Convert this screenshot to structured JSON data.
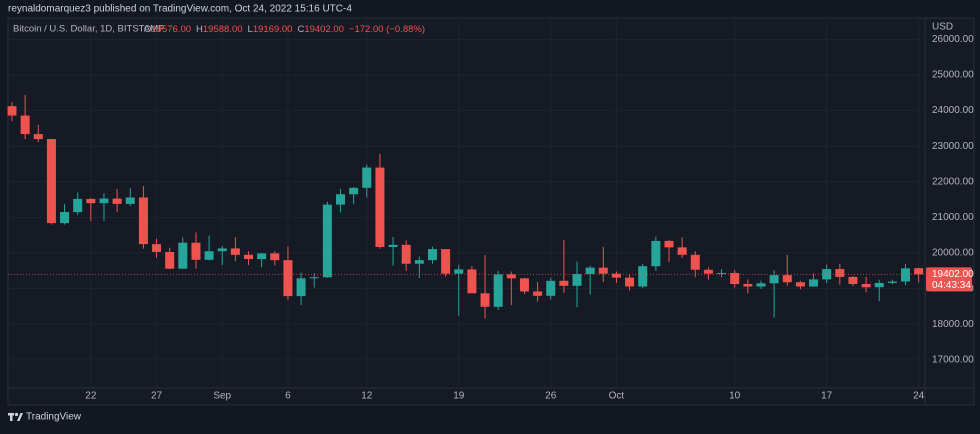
{
  "header": {
    "publisher": "reynaldomarquez3 published on TradingView.com, Oct 24, 2022 15:16 UTC-4"
  },
  "chart_data": {
    "type": "candlestick",
    "title": "Bitcoin / U.S. Dollar, 1D, BITSTAMP",
    "ohlc_legend": [
      {
        "key": "O",
        "value": "19576.00"
      },
      {
        "key": "H",
        "value": "19588.00"
      },
      {
        "key": "L",
        "value": "19169.00"
      },
      {
        "key": "C",
        "value": "19402.00"
      }
    ],
    "change_label": "−172.00 (−0.88%)",
    "currency": "USD",
    "last_price_label": "19402.00",
    "countdown": "04:43:34",
    "up_color": "#26a69a",
    "down_color": "#ef5350",
    "grid": true,
    "categories": [
      null,
      null,
      null,
      null,
      null,
      null,
      "22",
      null,
      null,
      null,
      null,
      "27",
      null,
      null,
      null,
      null,
      "Sep",
      null,
      null,
      null,
      null,
      "6",
      null,
      null,
      null,
      null,
      null,
      "12",
      null,
      null,
      null,
      null,
      null,
      null,
      "19",
      null,
      null,
      null,
      null,
      null,
      null,
      "26",
      null,
      null,
      null,
      null,
      "Oct",
      null,
      null,
      null,
      null,
      null,
      null,
      null,
      null,
      "10",
      null,
      null,
      null,
      null,
      null,
      null,
      "17",
      null,
      null,
      null,
      null,
      null,
      null,
      "24"
    ],
    "open": [
      24124,
      23860,
      23340,
      23200,
      20840,
      21150,
      21520,
      21400,
      21530,
      21380,
      21560,
      20250,
      20030,
      19560,
      20290,
      19810,
      20050,
      20130,
      19950,
      19830,
      19990,
      19800,
      18790,
      19290,
      19320,
      21360,
      21650,
      21830,
      22400,
      20170,
      20230,
      19700,
      19800,
      20110,
      19420,
      19540,
      18870,
      18490,
      19400,
      19290,
      18920,
      18800,
      19220,
      19080,
      19410,
      19590,
      19420,
      19310,
      19060,
      19630,
      20340,
      20160,
      19950,
      19530,
      19420,
      19440,
      19130,
      19060,
      19150,
      19380,
      19180,
      19060,
      19260,
      19550,
      19330,
      19130,
      19040,
      19160,
      19200,
      19576
    ],
    "high": [
      24240,
      24440,
      23600,
      23200,
      21380,
      21700,
      21540,
      21680,
      21800,
      21820,
      21880,
      20400,
      20150,
      20440,
      20580,
      20490,
      20200,
      20440,
      20050,
      20000,
      20050,
      20180,
      19450,
      19440,
      21440,
      21800,
      21850,
      22480,
      22790,
      20450,
      20350,
      19900,
      20180,
      20110,
      19670,
      19640,
      19940,
      19500,
      19480,
      19300,
      19180,
      19310,
      20360,
      19760,
      19640,
      20170,
      19480,
      19400,
      19700,
      20460,
      20370,
      20440,
      20050,
      19600,
      19550,
      19520,
      19260,
      19220,
      19520,
      19950,
      19220,
      19420,
      19670,
      19700,
      19350,
      19330,
      19250,
      19250,
      19690,
      19588
    ],
    "low": [
      23700,
      23200,
      23120,
      20800,
      20800,
      21070,
      20900,
      20900,
      21150,
      21320,
      20120,
      19870,
      19550,
      19550,
      19560,
      19790,
      19660,
      19770,
      19660,
      19600,
      19650,
      18680,
      18540,
      19030,
      19300,
      21140,
      21370,
      21560,
      20120,
      19650,
      19500,
      19300,
      19700,
      19340,
      18240,
      18900,
      18160,
      18400,
      18540,
      18850,
      18640,
      18690,
      18880,
      18480,
      18840,
      19190,
      19160,
      18950,
      19020,
      19500,
      19750,
      19860,
      19320,
      19250,
      19320,
      19030,
      18870,
      18990,
      18190,
      19080,
      18980,
      19050,
      19150,
      19110,
      19070,
      18900,
      18650,
      19120,
      19100,
      19169
    ],
    "close": [
      23860,
      23340,
      23200,
      20840,
      21150,
      21520,
      21400,
      21530,
      21380,
      21560,
      20250,
      20030,
      19560,
      20290,
      19810,
      20050,
      20130,
      19950,
      19830,
      19990,
      19800,
      18790,
      19290,
      19320,
      21360,
      21650,
      21830,
      22400,
      20170,
      20230,
      19700,
      19800,
      20110,
      19420,
      19540,
      18870,
      18490,
      19400,
      19290,
      18920,
      18800,
      19220,
      19080,
      19410,
      19590,
      19420,
      19310,
      19060,
      19630,
      20340,
      20160,
      19950,
      19530,
      19420,
      19440,
      19130,
      19060,
      19150,
      19380,
      19180,
      19060,
      19260,
      19550,
      19330,
      19130,
      19040,
      19160,
      19200,
      19570,
      19402
    ],
    "ylim": [
      16210,
      26600
    ],
    "yticks": [
      {
        "value": 17000,
        "label": "17000.00"
      },
      {
        "value": 18000,
        "label": "18000.00"
      },
      {
        "value": 19000,
        "label": "19000.00"
      },
      {
        "value": 20000,
        "label": "20000.00"
      },
      {
        "value": 21000,
        "label": "21000.00"
      },
      {
        "value": 22000,
        "label": "22000.00"
      },
      {
        "value": 23000,
        "label": "23000.00"
      },
      {
        "value": 24000,
        "label": "24000.00"
      },
      {
        "value": 25000,
        "label": "25000.00"
      },
      {
        "value": 26000,
        "label": "26000.00"
      }
    ]
  },
  "footer": {
    "brand": "TradingView"
  }
}
